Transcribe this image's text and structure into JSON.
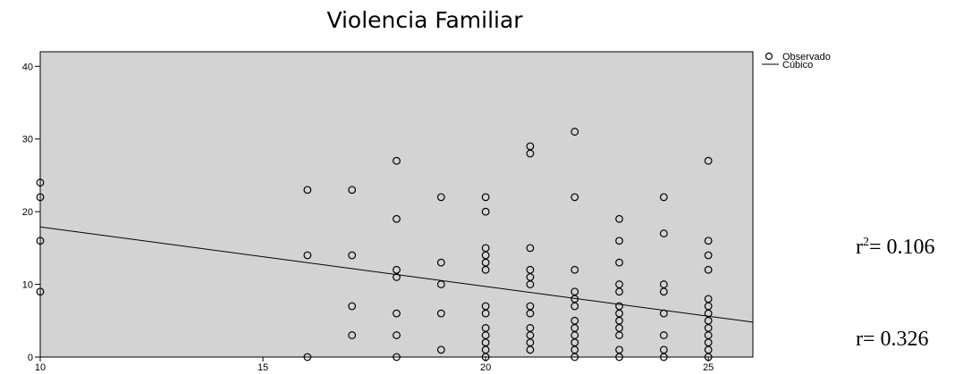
{
  "chart_data": {
    "type": "scatter",
    "title": "Violencia Familiar",
    "xlabel": "",
    "ylabel": "",
    "xlim": [
      10,
      26
    ],
    "ylim": [
      0,
      42
    ],
    "xticks": [
      10,
      15,
      20,
      25
    ],
    "yticks": [
      0,
      10,
      20,
      30,
      40
    ],
    "background": "#d3d3d3",
    "legend_position": "top-right",
    "series": [
      {
        "name": "Observado",
        "marker": "open-circle",
        "points": [
          [
            10,
            24
          ],
          [
            10,
            22
          ],
          [
            10,
            16
          ],
          [
            10,
            9
          ],
          [
            16,
            23
          ],
          [
            16,
            14
          ],
          [
            16,
            0
          ],
          [
            17,
            23
          ],
          [
            17,
            14
          ],
          [
            17,
            7
          ],
          [
            17,
            3
          ],
          [
            18,
            27
          ],
          [
            18,
            19
          ],
          [
            18,
            12
          ],
          [
            18,
            11
          ],
          [
            18,
            6
          ],
          [
            18,
            3
          ],
          [
            18,
            0
          ],
          [
            19,
            22
          ],
          [
            19,
            13
          ],
          [
            19,
            10
          ],
          [
            19,
            6
          ],
          [
            19,
            1
          ],
          [
            20,
            22
          ],
          [
            20,
            20
          ],
          [
            20,
            15
          ],
          [
            20,
            14
          ],
          [
            20,
            13
          ],
          [
            20,
            12
          ],
          [
            20,
            7
          ],
          [
            20,
            6
          ],
          [
            20,
            4
          ],
          [
            20,
            3
          ],
          [
            20,
            2
          ],
          [
            20,
            1
          ],
          [
            20,
            0
          ],
          [
            21,
            29
          ],
          [
            21,
            28
          ],
          [
            21,
            15
          ],
          [
            21,
            12
          ],
          [
            21,
            11
          ],
          [
            21,
            10
          ],
          [
            21,
            7
          ],
          [
            21,
            6
          ],
          [
            21,
            4
          ],
          [
            21,
            3
          ],
          [
            21,
            2
          ],
          [
            21,
            1
          ],
          [
            22,
            31
          ],
          [
            22,
            22
          ],
          [
            22,
            12
          ],
          [
            22,
            9
          ],
          [
            22,
            8
          ],
          [
            22,
            7
          ],
          [
            22,
            5
          ],
          [
            22,
            4
          ],
          [
            22,
            3
          ],
          [
            22,
            2
          ],
          [
            22,
            1
          ],
          [
            22,
            0
          ],
          [
            23,
            19
          ],
          [
            23,
            16
          ],
          [
            23,
            13
          ],
          [
            23,
            10
          ],
          [
            23,
            9
          ],
          [
            23,
            7
          ],
          [
            23,
            6
          ],
          [
            23,
            5
          ],
          [
            23,
            4
          ],
          [
            23,
            3
          ],
          [
            23,
            1
          ],
          [
            23,
            0
          ],
          [
            24,
            22
          ],
          [
            24,
            17
          ],
          [
            24,
            10
          ],
          [
            24,
            9
          ],
          [
            24,
            6
          ],
          [
            24,
            3
          ],
          [
            24,
            1
          ],
          [
            24,
            0
          ],
          [
            25,
            27
          ],
          [
            25,
            16
          ],
          [
            25,
            14
          ],
          [
            25,
            12
          ],
          [
            25,
            8
          ],
          [
            25,
            7
          ],
          [
            25,
            6
          ],
          [
            25,
            5
          ],
          [
            25,
            4
          ],
          [
            25,
            3
          ],
          [
            25,
            2
          ],
          [
            25,
            1
          ],
          [
            25,
            0
          ]
        ]
      },
      {
        "name": "Cúbico",
        "marker": "line",
        "x": [
          10,
          26
        ],
        "y": [
          17.9,
          4.8
        ]
      }
    ]
  },
  "stats": {
    "r2_base": "r",
    "r2_exp": "2",
    "r2_value": "= 0.106",
    "r_value": "r= 0.326"
  }
}
